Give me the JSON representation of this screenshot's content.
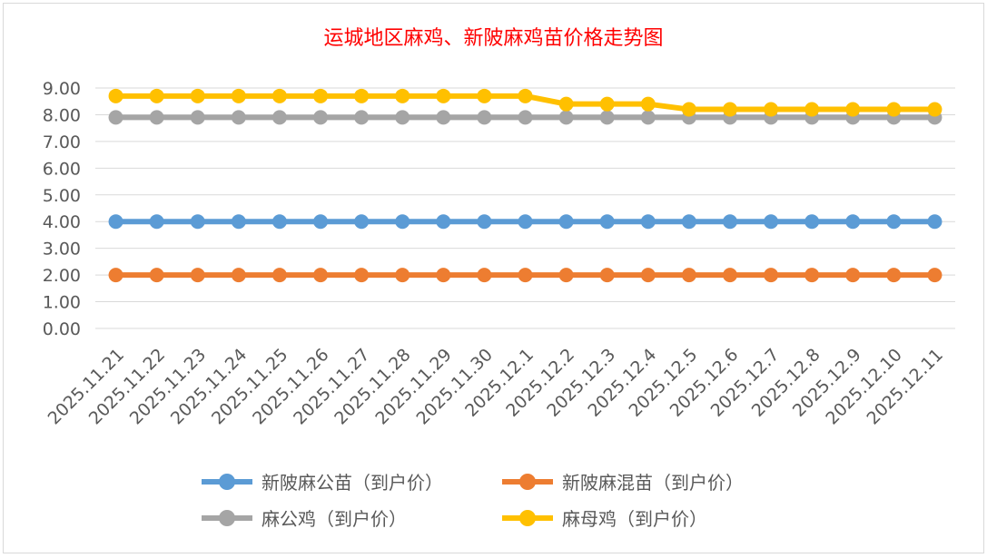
{
  "chart_data": {
    "type": "line",
    "title": "运城地区麻鸡、新陂麻鸡苗价格走势图",
    "categories": [
      "2025.11.21",
      "2025.11.22",
      "2025.11.23",
      "2025.11.24",
      "2025.11.25",
      "2025.11.26",
      "2025.11.27",
      "2025.11.28",
      "2025.11.29",
      "2025.11.30",
      "2025.12.1",
      "2025.12.2",
      "2025.12.3",
      "2025.12.4",
      "2025.12.5",
      "2025.12.6",
      "2025.12.7",
      "2025.12.8",
      "2025.12.9",
      "2025.12.10",
      "2025.12.11"
    ],
    "ylim": [
      0,
      9
    ],
    "yticks": [
      "0.00",
      "1.00",
      "2.00",
      "3.00",
      "4.00",
      "5.00",
      "6.00",
      "7.00",
      "8.00",
      "9.00"
    ],
    "grid": true,
    "legend_position": "bottom",
    "series": [
      {
        "name": "新陂麻公苗（到户价）",
        "color": "#5b9bd5",
        "values": [
          4,
          4,
          4,
          4,
          4,
          4,
          4,
          4,
          4,
          4,
          4,
          4,
          4,
          4,
          4,
          4,
          4,
          4,
          4,
          4,
          4
        ]
      },
      {
        "name": "新陂麻混苗（到户价）",
        "color": "#ed7d31",
        "values": [
          2,
          2,
          2,
          2,
          2,
          2,
          2,
          2,
          2,
          2,
          2,
          2,
          2,
          2,
          2,
          2,
          2,
          2,
          2,
          2,
          2
        ]
      },
      {
        "name": "麻公鸡（到户价）",
        "color": "#a5a5a5",
        "values": [
          7.9,
          7.9,
          7.9,
          7.9,
          7.9,
          7.9,
          7.9,
          7.9,
          7.9,
          7.9,
          7.9,
          7.9,
          7.9,
          7.9,
          7.9,
          7.9,
          7.9,
          7.9,
          7.9,
          7.9,
          7.9
        ]
      },
      {
        "name": "麻母鸡（到户价）",
        "color": "#ffc000",
        "values": [
          8.7,
          8.7,
          8.7,
          8.7,
          8.7,
          8.7,
          8.7,
          8.7,
          8.7,
          8.7,
          8.7,
          8.4,
          8.4,
          8.4,
          8.2,
          8.2,
          8.2,
          8.2,
          8.2,
          8.2,
          8.2
        ]
      }
    ]
  }
}
